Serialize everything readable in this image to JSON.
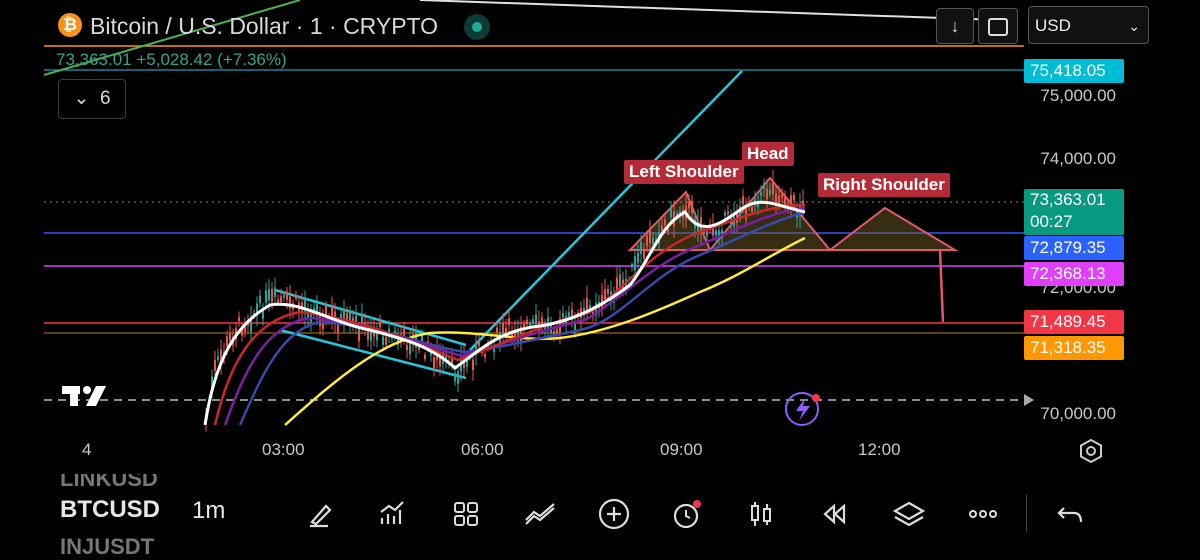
{
  "header": {
    "symbol_title": "Bitcoin / U.S. Dollar · 1 · CRYPTO",
    "logo_glyph": "₿",
    "quote": "73,363.01  +5,028.42 (+7.36%)",
    "indicator_toggle": "6",
    "currency": "USD",
    "buttons": [
      "down-arrow-icon",
      "fullscreen-icon"
    ]
  },
  "price_axis": {
    "labels": [
      "75,000.00",
      "74,000.00",
      "72,000.00",
      "70,000.00"
    ]
  },
  "price_tags": {
    "line_cyan": {
      "value": "75,418.05",
      "color": "#00bcd4"
    },
    "current": {
      "value": "73,363.01",
      "countdown": "00:27",
      "color": "#089981"
    },
    "blue": {
      "value": "72,879.35",
      "color": "#2962ff"
    },
    "magenta": {
      "value": "72,368.13",
      "color": "#e040fb"
    },
    "red": {
      "value": "71,489.45",
      "color": "#f23645"
    },
    "orange": {
      "value": "71,318.35",
      "color": "#ff9800"
    }
  },
  "time_axis": {
    "labels": [
      "4",
      "03:00",
      "06:00",
      "09:00",
      "12:00"
    ]
  },
  "annotations": {
    "left_shoulder": "Left Shoulder",
    "head": "Head",
    "right_shoulder": "Right Shoulder"
  },
  "bottom": {
    "prev_symbol": "LINKUSD",
    "current_symbol": "BTCUSD",
    "next_symbol": "INJUSDT",
    "interval": "1m",
    "tools": [
      "draw-icon",
      "indicators-icon",
      "layout-icon",
      "compare-icon",
      "add-icon",
      "alert-icon",
      "candle-type-icon",
      "replay-icon",
      "layers-icon",
      "more-icon",
      "undo-icon"
    ]
  },
  "logo": {
    "text": "TV"
  }
}
